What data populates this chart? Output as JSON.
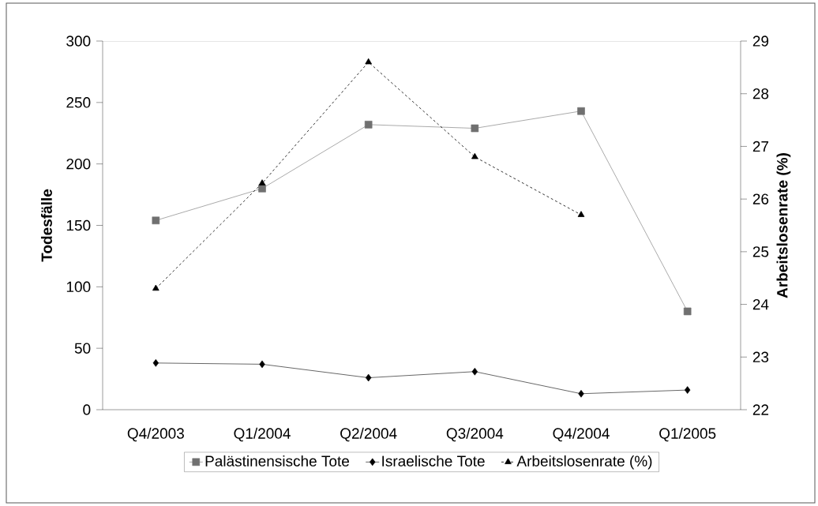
{
  "chart_data": {
    "type": "line",
    "categories": [
      "Q4/2003",
      "Q1/2004",
      "Q2/2004",
      "Q3/2004",
      "Q4/2004",
      "Q1/2005"
    ],
    "ylabel": "Todesfälle",
    "y2label": "Arbeitslosenrate (%)",
    "ylim": [
      0,
      300
    ],
    "yticks": [
      0,
      50,
      100,
      150,
      200,
      250,
      300
    ],
    "y2lim": [
      22,
      29
    ],
    "y2ticks": [
      22,
      23,
      24,
      25,
      26,
      27,
      28,
      29
    ],
    "legend": "bottom",
    "series": [
      {
        "name": "Palästinensische Tote",
        "color": "#707070",
        "marker": "square",
        "line_style": "solid",
        "values": [
          154,
          180,
          232,
          229,
          243,
          80
        ]
      },
      {
        "name": "Israelische Tote",
        "color": "#000000",
        "marker": "diamond",
        "line_style": "solid",
        "values": [
          38,
          37,
          26,
          31,
          13,
          16
        ]
      },
      {
        "name": "Arbeitslosenrate (%)",
        "color": "#000000",
        "marker": "triangle",
        "line_style": "dashed",
        "axis": "y2",
        "values": [
          24.3,
          26.3,
          28.6,
          26.8,
          25.7,
          null
        ]
      }
    ]
  }
}
